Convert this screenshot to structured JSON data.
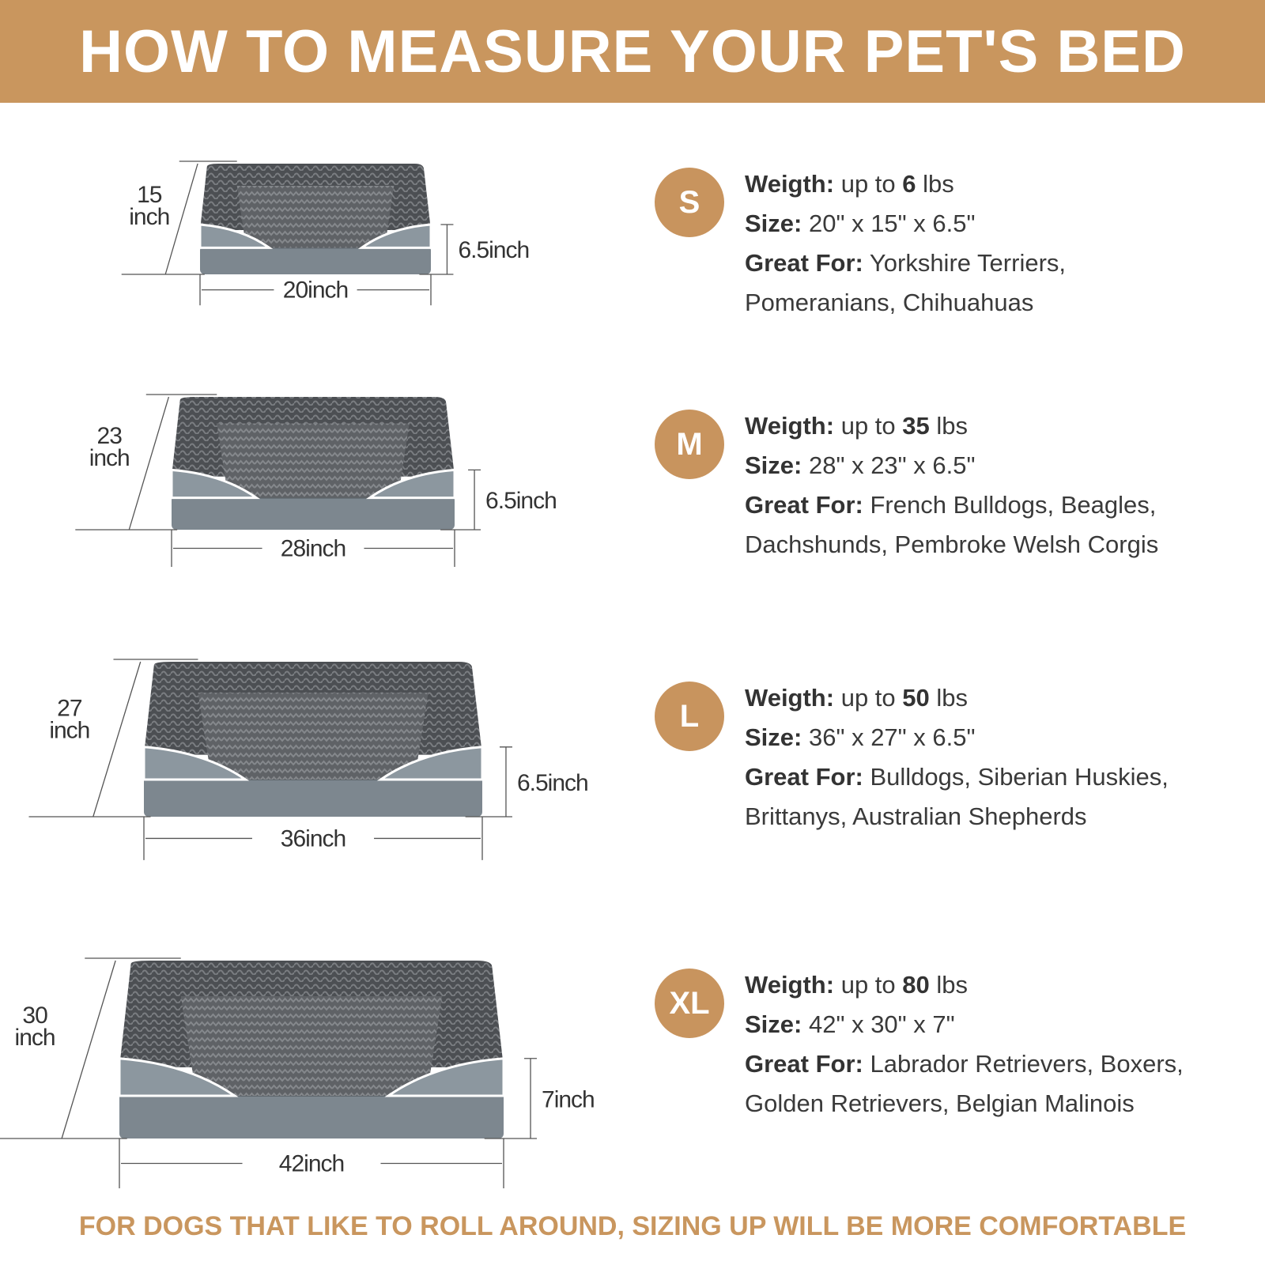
{
  "title": "HOW TO MEASURE YOUR PET'S BED",
  "colors": {
    "accent": "#C9965E",
    "text": "#3a3a3a",
    "bed_gray": "#8c979f",
    "bed_plush": "#55585c"
  },
  "sizes": [
    {
      "badge": "S",
      "weight_label": "Weigth:",
      "weight_pre": "up to",
      "weight_value": "6",
      "weight_unit": "lbs",
      "size_label": "Size:",
      "size_value": "20\" x 15\" x 6.5\"",
      "great_label": "Great For:",
      "great_line1": "Yorkshire Terriers,",
      "great_line2": "Pomeranians, Chihuahuas",
      "dims": {
        "depth": [
          "15",
          "inch"
        ],
        "height": "6.5inch",
        "width": "20inch"
      }
    },
    {
      "badge": "M",
      "weight_label": "Weigth:",
      "weight_pre": "up to",
      "weight_value": "35",
      "weight_unit": "lbs",
      "size_label": "Size:",
      "size_value": "28\" x 23\" x 6.5\"",
      "great_label": "Great For:",
      "great_line1": "French Bulldogs, Beagles,",
      "great_line2": "Dachshunds, Pembroke Welsh Corgis",
      "dims": {
        "depth": [
          "23",
          "inch"
        ],
        "height": "6.5inch",
        "width": "28inch"
      }
    },
    {
      "badge": "L",
      "weight_label": "Weigth:",
      "weight_pre": "up to",
      "weight_value": "50",
      "weight_unit": "lbs",
      "size_label": "Size:",
      "size_value": "36\" x 27\" x 6.5\"",
      "great_label": "Great For:",
      "great_line1": "Bulldogs, Siberian Huskies,",
      "great_line2": "Brittanys, Australian Shepherds",
      "dims": {
        "depth": [
          "27",
          "inch"
        ],
        "height": "6.5inch",
        "width": "36inch"
      }
    },
    {
      "badge": "XL",
      "weight_label": "Weigth:",
      "weight_pre": "up to",
      "weight_value": "80",
      "weight_unit": "lbs",
      "size_label": "Size:",
      "size_value": "42\" x 30\" x 7\"",
      "great_label": "Great For:",
      "great_line1": "Labrador Retrievers, Boxers,",
      "great_line2": "Golden Retrievers, Belgian Malinois",
      "dims": {
        "depth": [
          "30",
          "inch"
        ],
        "height": "7inch",
        "width": "42inch"
      }
    }
  ],
  "footer": "FOR DOGS THAT LIKE TO ROLL AROUND, SIZING UP WILL BE MORE COMFORTABLE"
}
